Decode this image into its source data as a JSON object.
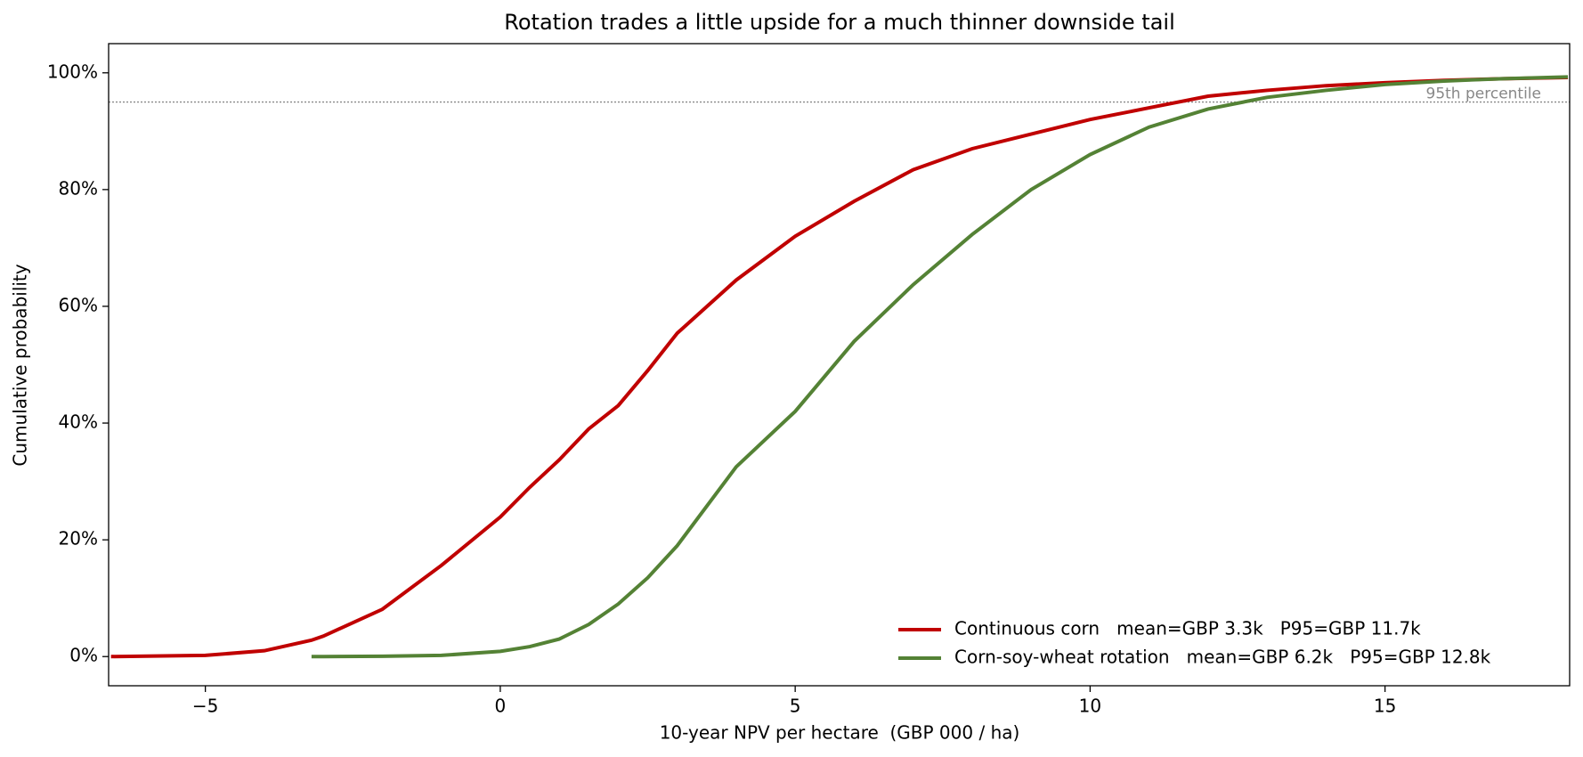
{
  "chart_data": {
    "type": "line",
    "title": "Rotation trades a little upside for a much thinner downside tail",
    "x_label": "10-year NPV per hectare  (GBP 000 / ha)",
    "y_label": "Cumulative probability",
    "x": [
      -6.6,
      -5,
      -4,
      -3.2,
      -3,
      -2,
      -1,
      0,
      0.5,
      1,
      1.5,
      2,
      2.5,
      3,
      4,
      5,
      6,
      7,
      8,
      9,
      10,
      11,
      12,
      13,
      14,
      15,
      16,
      17,
      18.1
    ],
    "series": [
      {
        "name": "Continuous corn   mean=GBP 3.3k   P95=GBP 11.7k",
        "color": "#c00000",
        "values": [
          0,
          0.2,
          1,
          2.8,
          3.5,
          8.1,
          15.6,
          23.9,
          29,
          33.7,
          39,
          43,
          49,
          55.4,
          64.5,
          72,
          78,
          83.4,
          87,
          89.5,
          92,
          94,
          96,
          97,
          97.8,
          98.3,
          98.7,
          99,
          99.2
        ]
      },
      {
        "name": "Corn-soy-wheat rotation   mean=GBP 6.2k   P95=GBP 12.8k",
        "color": "#548235",
        "values": [
          null,
          null,
          null,
          0,
          0,
          0.05,
          0.2,
          0.9,
          1.7,
          3,
          5.5,
          9,
          13.5,
          19,
          32.5,
          42,
          54,
          63.7,
          72.3,
          80,
          86,
          90.7,
          93.8,
          95.8,
          97,
          98,
          98.6,
          99,
          99.3
        ]
      }
    ],
    "xlim": [
      -6.64,
      18.13
    ],
    "xticks": [
      {
        "value": -5,
        "label": "−5"
      },
      0,
      5,
      10,
      15
    ],
    "ylim": [
      -5,
      105
    ],
    "yticks": [
      {
        "value": 0,
        "label": "0%"
      },
      {
        "value": 20,
        "label": "20%"
      },
      {
        "value": 40,
        "label": "40%"
      },
      {
        "value": 60,
        "label": "60%"
      },
      {
        "value": 80,
        "label": "80%"
      },
      {
        "value": 100,
        "label": "100%"
      }
    ],
    "reference_line": {
      "value": 95,
      "label": "95th percentile",
      "color": "#888888"
    },
    "legend": "lower right",
    "grid": false
  }
}
